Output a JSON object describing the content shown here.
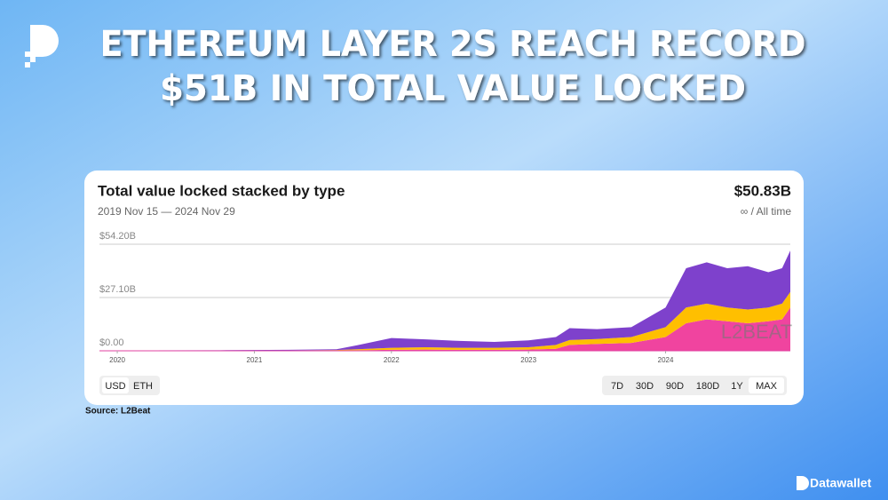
{
  "headline": [
    "ETHEREUM LAYER 2S REACH RECORD",
    "$51B IN TOTAL VALUE LOCKED"
  ],
  "source": "Source: L2Beat",
  "brand": "Datawallet",
  "chart_data": {
    "type": "area",
    "title": "Total value locked stacked by type",
    "subtitle": "2019 Nov 15 — 2024 Nov 29",
    "total": "$50.83B",
    "range_label": "∞ / All time",
    "watermark": "L2BEAT",
    "x": [
      2019.87,
      2020.25,
      2020.75,
      2021.25,
      2021.6,
      2021.75,
      2022.0,
      2022.25,
      2022.5,
      2022.75,
      2023.0,
      2023.2,
      2023.3,
      2023.5,
      2023.75,
      2024.0,
      2024.15,
      2024.3,
      2024.45,
      2024.6,
      2024.75,
      2024.85,
      2024.91
    ],
    "series": [
      {
        "color": "#f0449f",
        "values": [
          0,
          0,
          0.05,
          0.1,
          0.2,
          0.3,
          0.5,
          0.6,
          0.5,
          0.5,
          0.6,
          1,
          3,
          3.5,
          4,
          7,
          14,
          16,
          15,
          14,
          15,
          16,
          22
        ]
      },
      {
        "color": "#ffbf00",
        "values": [
          0,
          0,
          0.05,
          0.1,
          0.2,
          0.5,
          1,
          1.2,
          1,
          1,
          1.2,
          2,
          2.5,
          2.5,
          3,
          5,
          8,
          8,
          7,
          7,
          7,
          8,
          8
        ]
      },
      {
        "color": "#7e41cc",
        "values": [
          0.1,
          0.2,
          0.2,
          0.3,
          0.4,
          2,
          5,
          4,
          3.5,
          3,
          3.5,
          4,
          6,
          5,
          5,
          10,
          20,
          21,
          20,
          22,
          18,
          18,
          21
        ]
      }
    ],
    "xlim": [
      2019.87,
      2024.91
    ],
    "xticks": [
      2020,
      2021,
      2022,
      2023,
      2024
    ],
    "ylim": [
      0,
      54.2
    ],
    "yticks": [
      {
        "value": 0,
        "label": "$0.00"
      },
      {
        "value": 27.1,
        "label": "$27.10B"
      },
      {
        "value": 54.2,
        "label": "$54.20B"
      }
    ],
    "grid": true,
    "currency_options": [
      "USD",
      "ETH"
    ],
    "range_options": [
      "7D",
      "30D",
      "90D",
      "180D",
      "1Y",
      "MAX"
    ]
  }
}
